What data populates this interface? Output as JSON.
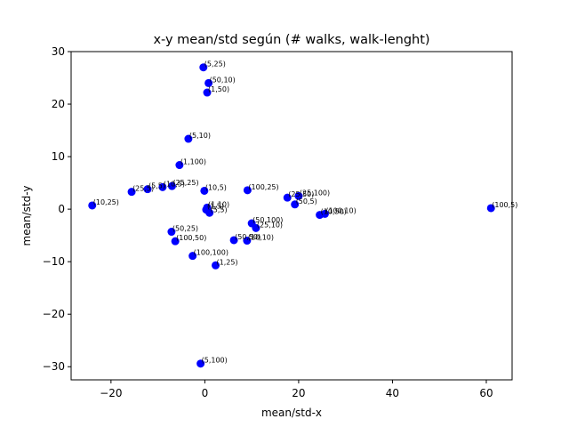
{
  "chart_data": {
    "type": "scatter",
    "title": "x-y mean/std según (# walks, walk-lenght)",
    "xlabel": "mean/std-x",
    "ylabel": "mean/std-y",
    "xlim": [
      -28.5,
      65.5
    ],
    "ylim": [
      -32.5,
      30
    ],
    "xticks": [
      -20,
      0,
      20,
      40,
      60
    ],
    "yticks": [
      -30,
      -20,
      -10,
      0,
      10,
      20,
      30
    ],
    "xtick_labels": [
      "−20",
      "0",
      "20",
      "40",
      "60"
    ],
    "ytick_labels": [
      "−30",
      "−20",
      "−10",
      "0",
      "10",
      "20",
      "30"
    ],
    "marker_color": "#0000ff",
    "points": [
      {
        "x": -0.3,
        "y": 27.0,
        "label": "(5,25)"
      },
      {
        "x": 0.8,
        "y": 24.0,
        "label": "(50,10)"
      },
      {
        "x": 0.5,
        "y": 22.2,
        "label": "(1,50)"
      },
      {
        "x": -3.5,
        "y": 13.4,
        "label": "(5,10)"
      },
      {
        "x": -5.4,
        "y": 8.4,
        "label": "(1,100)"
      },
      {
        "x": -24.0,
        "y": 0.7,
        "label": "(10,25)"
      },
      {
        "x": -15.6,
        "y": 3.3,
        "label": "(25,5)"
      },
      {
        "x": -12.2,
        "y": 3.8,
        "label": "(5,5)"
      },
      {
        "x": -9.0,
        "y": 4.2,
        "label": "(10,5)"
      },
      {
        "x": -7.0,
        "y": 4.4,
        "label": "(25,25)"
      },
      {
        "x": -0.1,
        "y": 3.5,
        "label": "(10,5)"
      },
      {
        "x": 9.1,
        "y": 3.6,
        "label": "(100,25)"
      },
      {
        "x": 17.6,
        "y": 2.2,
        "label": "(25,50)"
      },
      {
        "x": 20.0,
        "y": 2.5,
        "label": "(25,100)"
      },
      {
        "x": 19.2,
        "y": 0.9,
        "label": "(50,5)"
      },
      {
        "x": 24.5,
        "y": -1.1,
        "label": "(10,50)"
      },
      {
        "x": 25.6,
        "y": -0.9,
        "label": "(100,10)"
      },
      {
        "x": 61.0,
        "y": 0.2,
        "label": "(100,5)"
      },
      {
        "x": 0.5,
        "y": 0.3,
        "label": "(1,10)"
      },
      {
        "x": 0.3,
        "y": -0.1,
        "label": "(1,5)"
      },
      {
        "x": 1.0,
        "y": -0.7,
        "label": "(5,5)"
      },
      {
        "x": 10.0,
        "y": -2.7,
        "label": "(50,100)"
      },
      {
        "x": 10.9,
        "y": -3.6,
        "label": "(25,10)"
      },
      {
        "x": -7.1,
        "y": -4.3,
        "label": "(50,25)"
      },
      {
        "x": -6.3,
        "y": -6.1,
        "label": "(100,50)"
      },
      {
        "x": 6.2,
        "y": -5.9,
        "label": "(50,50)"
      },
      {
        "x": 9.0,
        "y": -6.0,
        "label": "(10,10)"
      },
      {
        "x": -2.6,
        "y": -8.9,
        "label": "(100,100)"
      },
      {
        "x": 2.3,
        "y": -10.7,
        "label": "(1,25)"
      },
      {
        "x": -0.9,
        "y": -29.4,
        "label": "(5,100)"
      }
    ]
  }
}
